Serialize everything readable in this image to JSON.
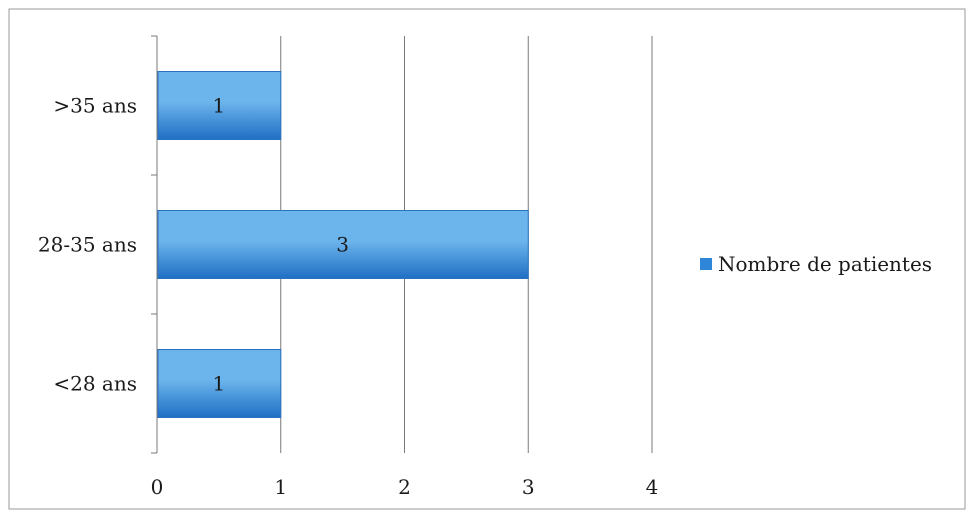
{
  "colors": {
    "bar_fill_light": "#6cb4ec",
    "bar_fill_dark": "#1f6fc4",
    "bar_stroke": "#2a72c0",
    "grid": "#7a7a7a",
    "border": "#9a9a9a",
    "legend_swatch": "#2f86d8"
  },
  "chart_data": {
    "type": "bar",
    "orientation": "horizontal",
    "categories": [
      ">35 ans",
      "28-35 ans",
      "<28 ans"
    ],
    "series": [
      {
        "name": "Nombre de patientes",
        "values": [
          1,
          3,
          1
        ]
      }
    ],
    "data_labels": [
      "1",
      "3",
      "1"
    ],
    "xlim": [
      0,
      4
    ],
    "x_ticks": [
      "0",
      "1",
      "2",
      "3",
      "4"
    ],
    "grid": true,
    "legend_position": "right"
  }
}
